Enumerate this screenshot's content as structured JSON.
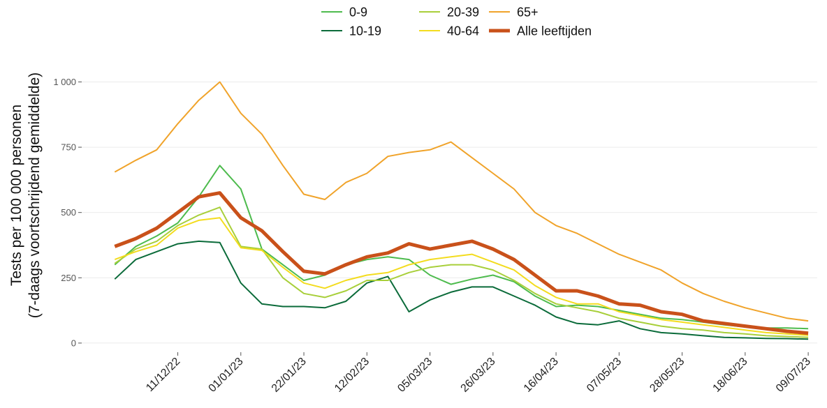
{
  "chart_data": {
    "type": "line",
    "ylabel": [
      "Tests per 100 000 personen",
      "(7-daags voortschrijdend gemiddelde)"
    ],
    "x": [
      "20/11/22",
      "27/11/22",
      "04/12/22",
      "11/12/22",
      "18/12/22",
      "25/12/22",
      "01/01/23",
      "08/01/23",
      "15/01/23",
      "22/01/23",
      "29/01/23",
      "05/02/23",
      "12/02/23",
      "19/02/23",
      "26/02/23",
      "05/03/23",
      "12/03/23",
      "19/03/23",
      "26/03/23",
      "02/04/23",
      "09/04/23",
      "16/04/23",
      "23/04/23",
      "30/04/23",
      "07/05/23",
      "14/05/23",
      "21/05/23",
      "28/05/23",
      "04/06/23",
      "11/06/23",
      "18/06/23",
      "25/06/23",
      "02/07/23",
      "09/07/23"
    ],
    "xlim": [
      "09/11/22",
      "12/07/23"
    ],
    "xticks": [
      "11/12/22",
      "01/01/23",
      "22/01/23",
      "12/02/23",
      "05/03/23",
      "26/03/23",
      "16/04/23",
      "07/05/23",
      "28/05/23",
      "18/06/23",
      "09/07/23"
    ],
    "ylim": [
      -35,
      1060
    ],
    "yticks": [
      0,
      250,
      500,
      750,
      {
        "value": 1000,
        "label": "1 000"
      }
    ],
    "grid": true,
    "legend": "top",
    "series": [
      {
        "name": "0-9",
        "color": "#4dbb4d",
        "width": 2,
        "values": [
          300,
          370,
          410,
          460,
          560,
          680,
          590,
          360,
          300,
          240,
          260,
          300,
          320,
          330,
          320,
          260,
          225,
          245,
          260,
          235,
          180,
          140,
          145,
          140,
          125,
          110,
          95,
          90,
          80,
          70,
          62,
          58,
          58,
          55
        ]
      },
      {
        "name": "10-19",
        "color": "#0b6b3a",
        "width": 2,
        "values": [
          245,
          320,
          350,
          380,
          390,
          385,
          230,
          150,
          140,
          140,
          135,
          160,
          230,
          255,
          120,
          165,
          195,
          215,
          215,
          180,
          145,
          100,
          75,
          70,
          85,
          55,
          40,
          35,
          28,
          22,
          20,
          18,
          17,
          15
        ]
      },
      {
        "name": "20-39",
        "color": "#a8cf3a",
        "width": 2,
        "values": [
          305,
          360,
          390,
          450,
          490,
          520,
          370,
          360,
          250,
          190,
          175,
          200,
          240,
          240,
          270,
          290,
          300,
          300,
          280,
          240,
          190,
          150,
          135,
          120,
          95,
          80,
          65,
          55,
          50,
          40,
          35,
          28,
          25,
          22
        ]
      },
      {
        "name": "40-64",
        "color": "#f3dc1e",
        "width": 2,
        "values": [
          320,
          350,
          375,
          440,
          470,
          480,
          365,
          355,
          290,
          230,
          210,
          240,
          260,
          270,
          300,
          320,
          330,
          340,
          310,
          280,
          220,
          175,
          150,
          150,
          120,
          105,
          90,
          80,
          70,
          60,
          50,
          40,
          35,
          30
        ]
      },
      {
        "name": "65+",
        "color": "#f0a32a",
        "width": 2,
        "values": [
          655,
          700,
          740,
          840,
          930,
          1000,
          880,
          800,
          680,
          570,
          550,
          615,
          650,
          715,
          730,
          740,
          770,
          710,
          650,
          590,
          500,
          450,
          420,
          380,
          340,
          310,
          280,
          230,
          190,
          160,
          135,
          115,
          95,
          85
        ]
      },
      {
        "name": "Alle leeftijden",
        "color": "#c9511a",
        "width": 5,
        "values": [
          370,
          400,
          440,
          500,
          560,
          575,
          480,
          430,
          350,
          275,
          265,
          300,
          330,
          345,
          380,
          360,
          375,
          390,
          360,
          320,
          260,
          200,
          200,
          180,
          150,
          145,
          120,
          110,
          85,
          75,
          65,
          55,
          45,
          38
        ]
      }
    ]
  }
}
